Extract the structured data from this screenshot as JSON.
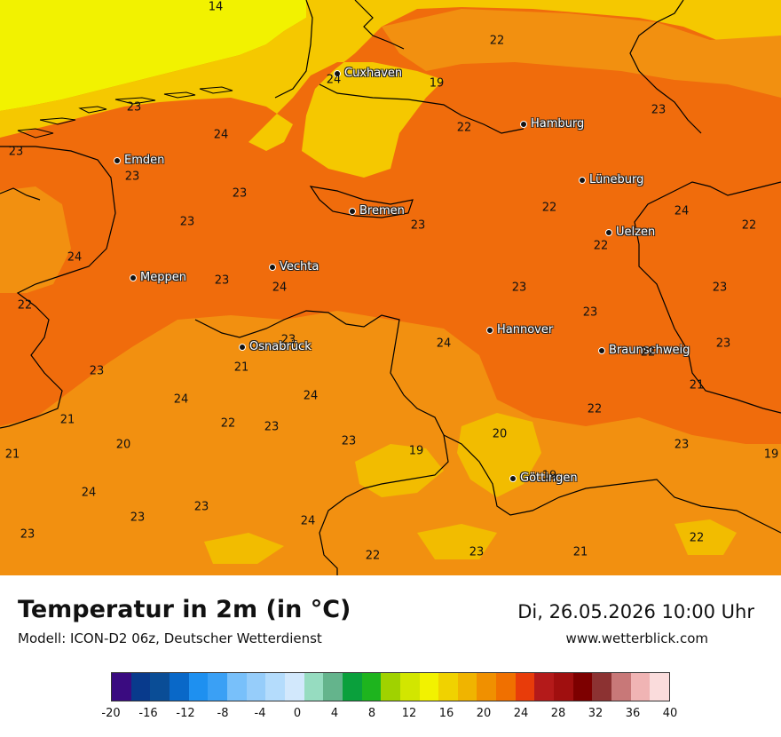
{
  "title": "Temperatur in 2m (in °C)",
  "model": "Modell: ICON-D2 06z, Deutscher Wetterdienst",
  "datetime": "Di, 26.05.2026 10:00 Uhr",
  "website": "www.wetterblick.com",
  "colors": {
    "sea_14": "#f2f200",
    "coast_20": "#f5c800",
    "t22": "#f29010",
    "t23": "#f06c0c",
    "t19": "#f2bc00",
    "border": "#000000"
  },
  "cities": [
    {
      "id": "cuxhaven",
      "name": "Cuxhaven"
    },
    {
      "id": "hamburg",
      "name": "Hamburg"
    },
    {
      "id": "emden",
      "name": "Emden"
    },
    {
      "id": "lueneburg",
      "name": "Lüneburg"
    },
    {
      "id": "bremen",
      "name": "Bremen"
    },
    {
      "id": "uelzen",
      "name": "Uelzen"
    },
    {
      "id": "meppen",
      "name": "Meppen"
    },
    {
      "id": "vechta",
      "name": "Vechta"
    },
    {
      "id": "hannover",
      "name": "Hannover"
    },
    {
      "id": "osnabrueck",
      "name": "Osnabrück"
    },
    {
      "id": "braunschweig",
      "name": "Braunschweig"
    },
    {
      "id": "goettingen",
      "name": "Göttingen"
    }
  ],
  "temperature_labels": [
    "14",
    "22",
    "24",
    "19",
    "23",
    "23",
    "22",
    "24",
    "23",
    "23",
    "23",
    "22",
    "24",
    "23",
    "23",
    "22",
    "22",
    "24",
    "23",
    "24",
    "23",
    "23",
    "22",
    "23",
    "23",
    "24",
    "23",
    "22",
    "21",
    "23",
    "21",
    "24",
    "24",
    "22",
    "21",
    "22",
    "23",
    "20",
    "23",
    "20",
    "23",
    "19",
    "19",
    "21",
    "24",
    "19",
    "23",
    "23",
    "24",
    "23",
    "22",
    "23",
    "21",
    "22",
    "19",
    "20",
    "22",
    "24"
  ],
  "legend": {
    "colors": [
      "#3a0b80",
      "#083a8c",
      "#0a4d96",
      "#0968c8",
      "#1e90f0",
      "#3aa0f5",
      "#78c0fa",
      "#96cdfa",
      "#b4dcfc",
      "#d2e8fc",
      "#96dcc0",
      "#64b48c",
      "#0aa03c",
      "#1eb41e",
      "#a0d200",
      "#d2e600",
      "#f2f200",
      "#f0d200",
      "#f0b400",
      "#f09000",
      "#f07000",
      "#e83c0a",
      "#b41a1a",
      "#a00f0f",
      "#7d0000",
      "#8c3232",
      "#c87878",
      "#f0b4b4",
      "#fadcdc"
    ],
    "ticks": [
      "-20",
      "-16",
      "-12",
      "-8",
      "-4",
      "0",
      "4",
      "8",
      "12",
      "16",
      "20",
      "24",
      "28",
      "32",
      "36",
      "40"
    ]
  }
}
